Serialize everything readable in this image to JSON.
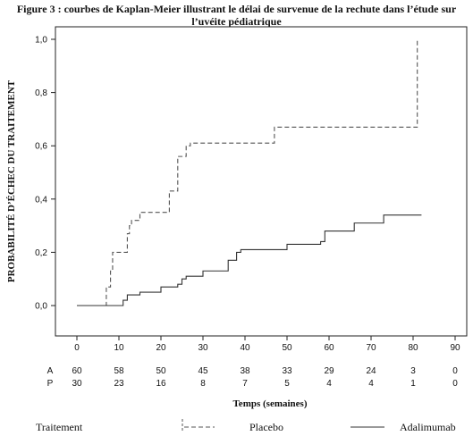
{
  "figure": {
    "title_line1": "Figure 3 : courbes de Kaplan-Meier illustrant le délai de survenue de la rechute dans l’étude sur",
    "title_line2": "l’uvéite pédiatrique"
  },
  "chart_data": {
    "type": "line",
    "title": "Figure 3 : courbes de Kaplan-Meier illustrant le délai de survenue de la rechute dans l’étude sur l’uvéite pédiatrique",
    "xlabel": "Temps (semaines)",
    "ylabel": "PROBABILITÉ D’ÉCHEC DU TRAITEMENT",
    "xlim": [
      -10,
      90
    ],
    "ylim": [
      -0.05,
      1.02
    ],
    "x_ticks": [
      0,
      10,
      20,
      30,
      40,
      50,
      60,
      70,
      80,
      90
    ],
    "y_ticks": [
      0.0,
      0.2,
      0.4,
      0.6,
      0.8,
      1.0
    ],
    "y_tick_labels": [
      "0,0",
      "0,2",
      "0,4",
      "0,6",
      "0,8",
      "1,0"
    ],
    "grid": false,
    "series": [
      {
        "name": "Placebo",
        "style": "dashed",
        "color": "#555555",
        "steps": [
          [
            0,
            0.0
          ],
          [
            7,
            0.07
          ],
          [
            8,
            0.13
          ],
          [
            8.5,
            0.2
          ],
          [
            9,
            0.2
          ],
          [
            12,
            0.27
          ],
          [
            12.5,
            0.3
          ],
          [
            13,
            0.32
          ],
          [
            15,
            0.35
          ],
          [
            22,
            0.43
          ],
          [
            23,
            0.43
          ],
          [
            24,
            0.56
          ],
          [
            26,
            0.6
          ],
          [
            27,
            0.61
          ],
          [
            47,
            0.67
          ],
          [
            81,
            1.0
          ]
        ]
      },
      {
        "name": "Adalimumab",
        "style": "solid",
        "color": "#333333",
        "steps": [
          [
            0,
            0.0
          ],
          [
            11,
            0.02
          ],
          [
            12,
            0.04
          ],
          [
            15,
            0.05
          ],
          [
            20,
            0.07
          ],
          [
            24,
            0.08
          ],
          [
            25,
            0.1
          ],
          [
            26,
            0.11
          ],
          [
            30,
            0.13
          ],
          [
            36,
            0.17
          ],
          [
            38,
            0.2
          ],
          [
            39,
            0.21
          ],
          [
            50,
            0.23
          ],
          [
            58,
            0.24
          ],
          [
            59,
            0.28
          ],
          [
            66,
            0.31
          ],
          [
            73,
            0.34
          ],
          [
            82,
            0.34
          ]
        ]
      }
    ],
    "risk_table": {
      "rows": [
        {
          "label": "A",
          "values": [
            "60",
            "58",
            "50",
            "45",
            "38",
            "33",
            "29",
            "24",
            "3",
            "0"
          ]
        },
        {
          "label": "P",
          "values": [
            "30",
            "23",
            "16",
            "8",
            "7",
            "5",
            "4",
            "4",
            "1",
            "0"
          ]
        }
      ]
    }
  },
  "legend": {
    "header": "Traitement",
    "items": [
      {
        "label": "Placebo",
        "style": "dashed"
      },
      {
        "label": "Adalimumab",
        "style": "solid"
      }
    ]
  }
}
